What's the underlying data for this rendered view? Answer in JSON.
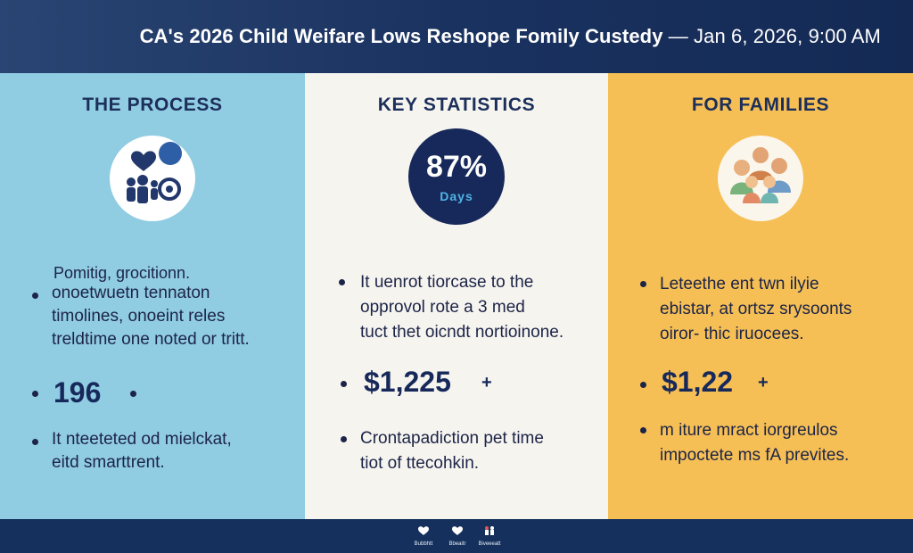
{
  "headline": {
    "title": "CA's 2026 Child Weifare Lows Reshope Fomily Custedy",
    "date": "— Jan 6, 2026, 9:00 AM"
  },
  "panels": {
    "process": {
      "title": "THE PROCESS",
      "icon": "family-heart-icon",
      "intro": "Pomitig, grocitionn.",
      "bullet_lines": [
        "onoetwuetn tennaton",
        "timolines, onoeint reles",
        "treldtime one noted or tritt."
      ],
      "big": "196",
      "bottom_lines": [
        "It nteeteted od mielckat,",
        "eitd smarttrent."
      ]
    },
    "stats": {
      "title": "KEY STATISTICS",
      "pct": "87%",
      "unit": "Days",
      "bullet_lines": [
        "It uenrot tiorcase to the",
        "opprovol rote a 3 med",
        "tuct thet oicndt nortioinone."
      ],
      "big": "$1,225",
      "bottom_lines": [
        "Crontapadiction pet time",
        "tiot of ttecohkin."
      ]
    },
    "families": {
      "title": "FOR FAMILIES",
      "icon": "family-group-icon",
      "bullet_lines": [
        "Leteethe ent twn ilyie",
        "ebistar, at ortsz srysoonts",
        "oiror- thic iruocees."
      ],
      "big": "$1,22",
      "bottom_lines": [
        "m iture mract iorgreulos",
        "impoctete ms fA prevites."
      ]
    }
  },
  "footer": {
    "labels": [
      "Bubbhtt",
      "Bbeaitr",
      "Biveeeatt"
    ]
  },
  "colors": {
    "navy": "#1b3563",
    "process_bg": "#90cce2",
    "stats_bg": "#f6f4ef",
    "families_bg": "#f6bf55",
    "accent_blue": "#4fb4e6"
  }
}
